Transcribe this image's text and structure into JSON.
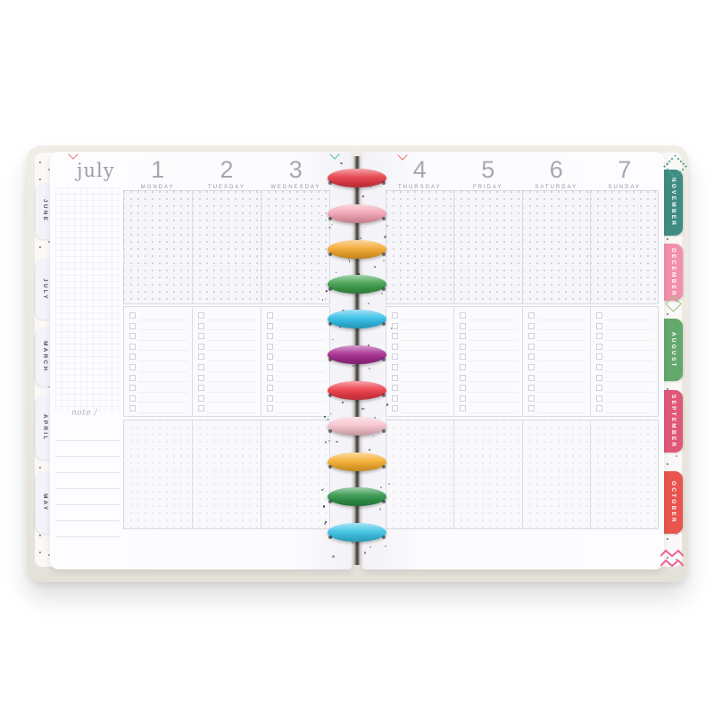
{
  "planner": {
    "month_label": "july",
    "note_label": "note /",
    "week": [
      {
        "date": "1",
        "day": "MONDAY"
      },
      {
        "date": "2",
        "day": "TUESDAY"
      },
      {
        "date": "3",
        "day": "WEDNESDAY"
      },
      {
        "date": "4",
        "day": "THURSDAY"
      },
      {
        "date": "5",
        "day": "FRIDAY"
      },
      {
        "date": "6",
        "day": "SATURDAY"
      },
      {
        "date": "7",
        "day": "SUNDAY"
      }
    ],
    "left_tabs": [
      {
        "label": "JUNE",
        "bg": "#f4f3f9",
        "text_color": "#53535c"
      },
      {
        "label": "JULY",
        "bg": "#f4f3f9",
        "text_color": "#53535c"
      },
      {
        "label": "MARCH",
        "bg": "#f4f3f9",
        "text_color": "#53535c"
      },
      {
        "label": "APRIL",
        "bg": "#f4f3f9",
        "text_color": "#53535c"
      },
      {
        "label": "MAY",
        "bg": "#f4f3f9",
        "text_color": "#53535c"
      }
    ],
    "right_tabs": [
      {
        "label": "NOVEMBER",
        "bg": "#3f8d82",
        "text_color": "#ffffff"
      },
      {
        "label": "DECEMBER",
        "bg": "#f28fac",
        "text_color": "#ffffff"
      },
      {
        "label": "AUGUST",
        "bg": "#63a96c",
        "text_color": "#ffffff"
      },
      {
        "label": "SEPTEMBER",
        "bg": "#e05878",
        "text_color": "#ffffff"
      },
      {
        "label": "OCTOBER",
        "bg": "#e9544e",
        "text_color": "#ffffff"
      }
    ],
    "disc_colors": [
      "#e73b47",
      "#f4a3b3",
      "#f4a72e",
      "#3d9e4c",
      "#31bfe8",
      "#a62b90",
      "#ee3c49",
      "#f7c3cd",
      "#f6ae2f",
      "#2f9447",
      "#3cc3e6"
    ],
    "checklist_rows": 10,
    "accent_colors": {
      "caret_coral": "#e8736f",
      "caret_teal": "#54b3af",
      "zigzag_pink": "#ef5f9a"
    }
  }
}
